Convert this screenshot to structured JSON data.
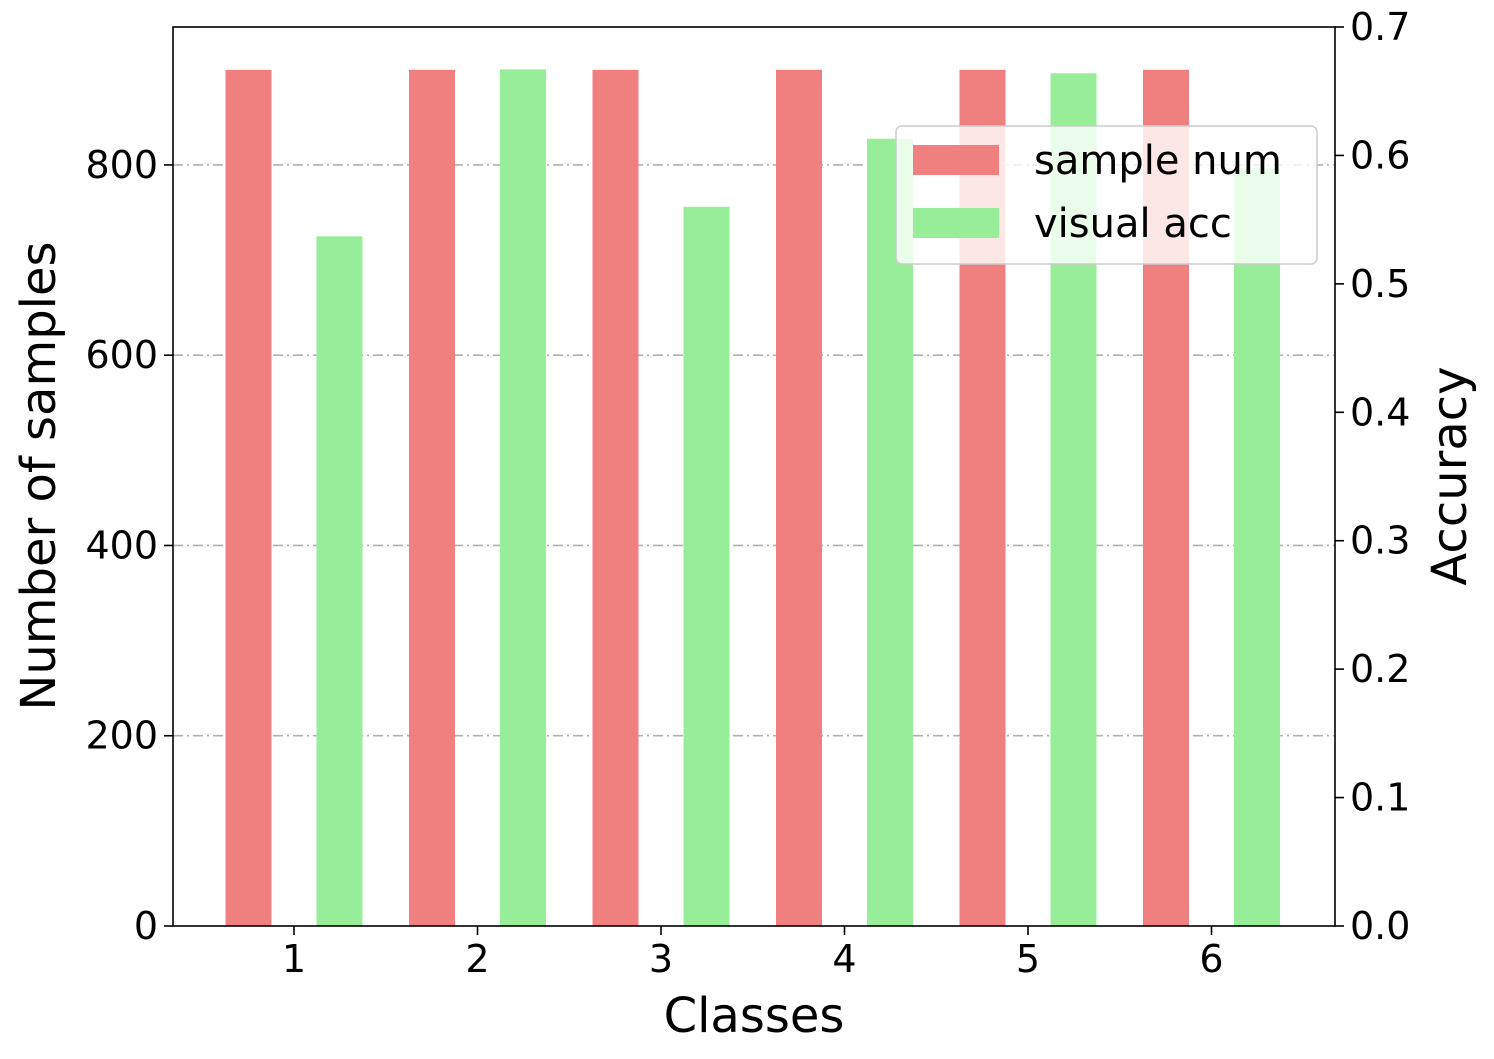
{
  "chart_data": {
    "type": "bar",
    "xlabel": "Classes",
    "ylabel_left": "Number of samples",
    "ylabel_right": "Accuracy",
    "categories": [
      "1",
      "2",
      "3",
      "4",
      "5",
      "6"
    ],
    "y_left_lim": [
      0,
      945
    ],
    "y_left_ticks": [
      "0",
      "200",
      "400",
      "600",
      "800"
    ],
    "y_right_lim": [
      0,
      0.7
    ],
    "y_right_ticks": [
      "0.0",
      "0.1",
      "0.2",
      "0.3",
      "0.4",
      "0.5",
      "0.6",
      "0.7"
    ],
    "grid": "horizontal dash-dot",
    "legend_position": "top-right",
    "series": [
      {
        "name": "sample num",
        "axis": "left",
        "color": "#f08080",
        "values": [
          900,
          900,
          900,
          900,
          900,
          900
        ]
      },
      {
        "name": "visual acc",
        "axis": "right",
        "color": "#98ee98",
        "values": [
          0.537,
          0.667,
          0.56,
          0.613,
          0.664,
          0.59
        ]
      }
    ]
  }
}
